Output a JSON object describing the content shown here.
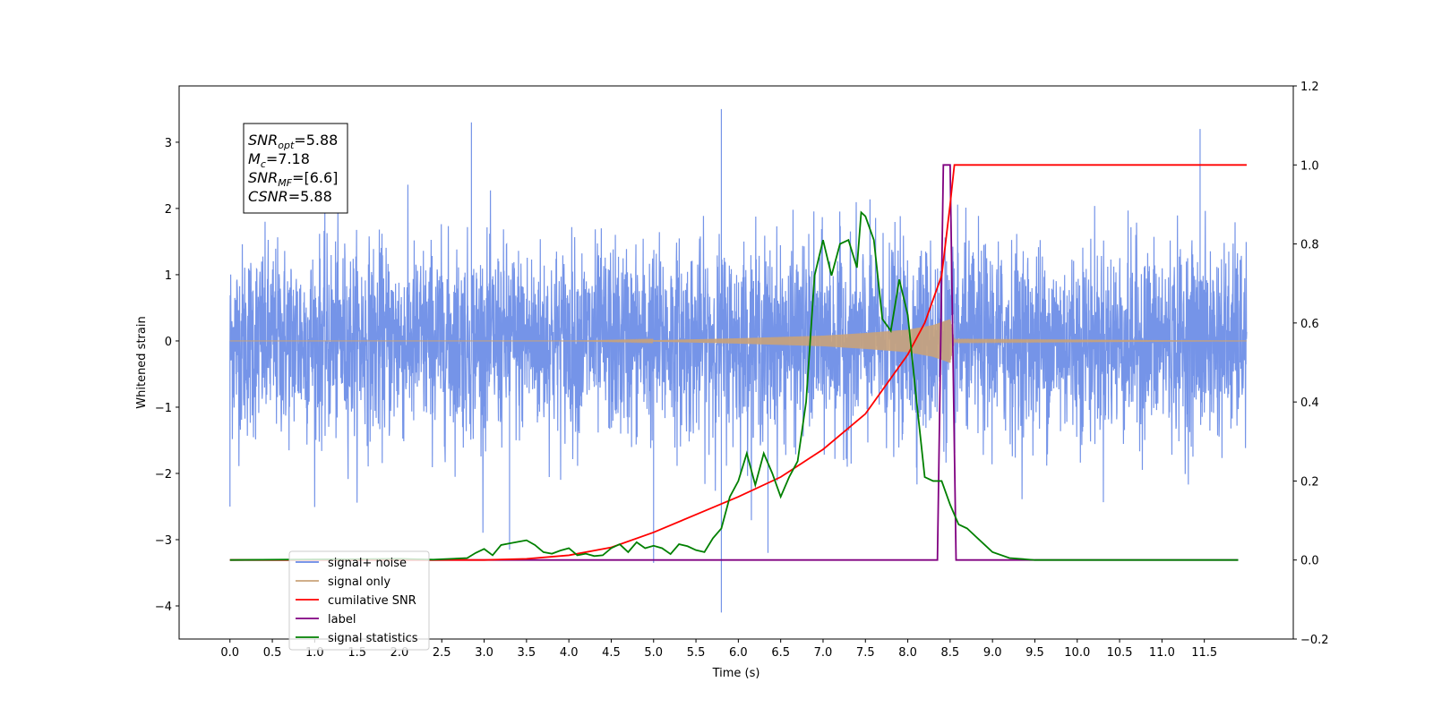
{
  "chart_data": {
    "type": "line",
    "title": "",
    "xlabel": "Time (s)",
    "ylabel": "Whitened strain",
    "y2label": "",
    "xlim": [
      -0.6,
      12.55
    ],
    "ylim": [
      -4.5,
      3.85
    ],
    "y2lim": [
      -0.2,
      1.2
    ],
    "x_ticks": [
      "0.0",
      "0.5",
      "1.0",
      "1.5",
      "2.0",
      "2.5",
      "3.0",
      "3.5",
      "4.0",
      "4.5",
      "5.0",
      "5.5",
      "6.0",
      "6.5",
      "7.0",
      "7.5",
      "8.0",
      "8.5",
      "9.0",
      "9.5",
      "10.0",
      "10.5",
      "11.0",
      "11.5"
    ],
    "y_ticks": [
      {
        "value": 3,
        "label": "3"
      },
      {
        "value": 2,
        "label": "2"
      },
      {
        "value": 1,
        "label": "1"
      },
      {
        "value": 0,
        "label": "0"
      },
      {
        "value": -1,
        "label": "−1"
      },
      {
        "value": -2,
        "label": "−2"
      },
      {
        "value": -3,
        "label": "−3"
      },
      {
        "value": -4,
        "label": "−4"
      }
    ],
    "y2_ticks": [
      {
        "value": 1.2,
        "label": "1.2"
      },
      {
        "value": 1.0,
        "label": "1.0"
      },
      {
        "value": 0.8,
        "label": "0.8"
      },
      {
        "value": 0.6,
        "label": "0.6"
      },
      {
        "value": 0.4,
        "label": "0.4"
      },
      {
        "value": 0.2,
        "label": "0.2"
      },
      {
        "value": 0.0,
        "label": "0.0"
      },
      {
        "value": -0.2,
        "label": "−0.2"
      }
    ],
    "legend_position": "lower-left",
    "series": [
      {
        "name": "signal+ noise",
        "axis": "left",
        "color": "#6688e6",
        "x_range": [
          0,
          12.0
        ],
        "typical_range": [
          -1.4,
          1.4
        ],
        "peak_max": 3.5,
        "peak_min": -4.1
      },
      {
        "name": "signal only",
        "axis": "left",
        "color": "#c9a27a",
        "x": [
          0,
          4,
          5,
          6,
          7,
          7.5,
          8,
          8.3,
          8.5,
          8.55,
          12
        ],
        "envelope": [
          0.0,
          0.0,
          0.01,
          0.04,
          0.08,
          0.12,
          0.17,
          0.24,
          0.33,
          0.01,
          0.0
        ]
      },
      {
        "name": "cumilative SNR",
        "axis": "right",
        "color": "#ff0000",
        "x": [
          0,
          3.0,
          3.5,
          4.0,
          4.5,
          5.0,
          5.5,
          6.0,
          6.5,
          7.0,
          7.5,
          8.0,
          8.2,
          8.4,
          8.5,
          8.55,
          12.0
        ],
        "y": [
          0,
          0,
          0.003,
          0.012,
          0.032,
          0.07,
          0.115,
          0.16,
          0.21,
          0.28,
          0.37,
          0.52,
          0.6,
          0.72,
          0.9,
          1.0,
          1.0
        ]
      },
      {
        "name": "label",
        "axis": "right",
        "color": "#800080",
        "x": [
          0,
          8.35,
          8.42,
          8.5,
          8.57,
          11.9
        ],
        "y": [
          0,
          0,
          1.0,
          1.0,
          0,
          0
        ]
      },
      {
        "name": "signal statistics",
        "axis": "right",
        "color": "#008000",
        "x": [
          0,
          2.0,
          2.4,
          2.8,
          2.9,
          3.0,
          3.1,
          3.2,
          3.3,
          3.4,
          3.5,
          3.6,
          3.7,
          3.8,
          3.9,
          4.0,
          4.1,
          4.2,
          4.3,
          4.4,
          4.5,
          4.6,
          4.7,
          4.8,
          4.9,
          5.0,
          5.1,
          5.2,
          5.3,
          5.4,
          5.5,
          5.6,
          5.7,
          5.8,
          5.9,
          6.0,
          6.1,
          6.2,
          6.3,
          6.4,
          6.5,
          6.6,
          6.7,
          6.8,
          6.9,
          7.0,
          7.1,
          7.2,
          7.3,
          7.4,
          7.45,
          7.5,
          7.6,
          7.7,
          7.8,
          7.9,
          8.0,
          8.1,
          8.2,
          8.3,
          8.4,
          8.5,
          8.6,
          8.7,
          8.8,
          8.9,
          9.0,
          9.2,
          9.5,
          11.9
        ],
        "y": [
          0,
          0.003,
          0.001,
          0.005,
          0.018,
          0.028,
          0.012,
          0.038,
          0.042,
          0.046,
          0.05,
          0.038,
          0.02,
          0.016,
          0.024,
          0.03,
          0.012,
          0.016,
          0.01,
          0.012,
          0.03,
          0.04,
          0.02,
          0.045,
          0.03,
          0.036,
          0.03,
          0.015,
          0.04,
          0.035,
          0.025,
          0.02,
          0.055,
          0.08,
          0.16,
          0.2,
          0.27,
          0.19,
          0.27,
          0.22,
          0.16,
          0.21,
          0.25,
          0.4,
          0.72,
          0.81,
          0.72,
          0.8,
          0.81,
          0.74,
          0.88,
          0.87,
          0.81,
          0.61,
          0.58,
          0.71,
          0.62,
          0.41,
          0.21,
          0.2,
          0.2,
          0.14,
          0.09,
          0.08,
          0.06,
          0.04,
          0.02,
          0.005,
          0.0,
          0.0
        ]
      }
    ],
    "info_box": {
      "lines": [
        {
          "base": "SNR",
          "sub": "opt",
          "rest": "=5.88"
        },
        {
          "base": "M",
          "sub": "c",
          "rest": "=7.18"
        },
        {
          "base": "SNR",
          "sub": "MF",
          "rest": "=[6.6]"
        },
        {
          "base": "CSNR",
          "sub": "",
          "rest": "=5.88"
        }
      ]
    },
    "grid": false
  }
}
